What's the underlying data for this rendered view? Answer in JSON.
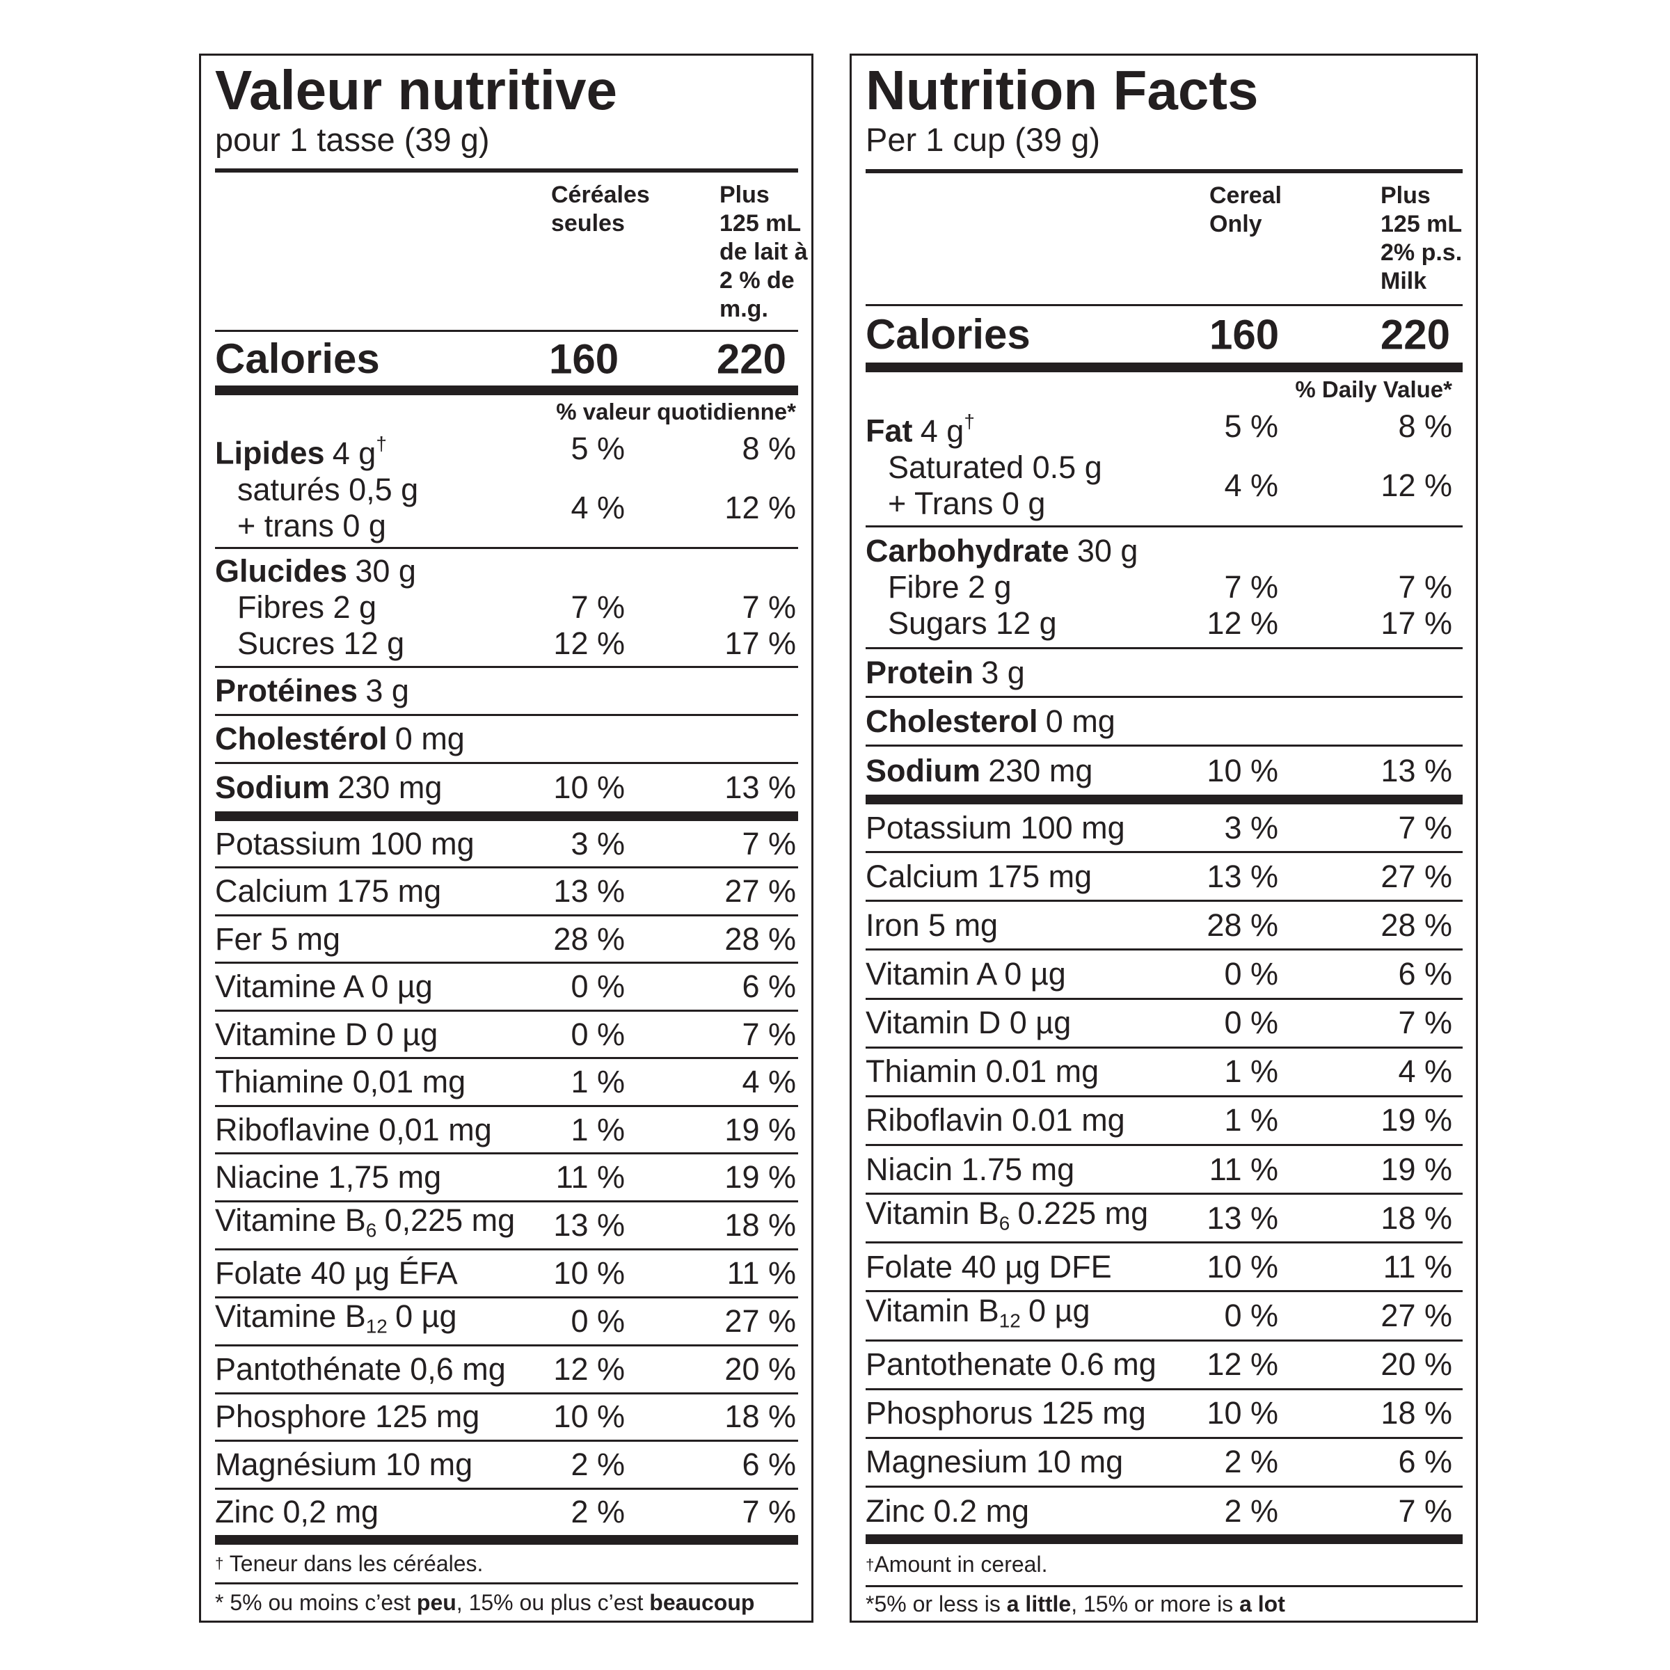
{
  "panels": [
    {
      "title": "Valeur nutritive",
      "serving": "pour 1 tasse (39 g)",
      "col_headers": [
        [
          "Céréales",
          "seules"
        ],
        [
          "Plus",
          "125 mL",
          "de lait à",
          "2 % de",
          "m.g."
        ]
      ],
      "calories": {
        "label": "Calories",
        "values": [
          "160",
          "220"
        ]
      },
      "dv_header": "% valeur quotidienne*",
      "macros": [
        {
          "items": [
            {
              "bold": "Lipides",
              "amount": "4 g",
              "sup": "†",
              "dv": [
                "5 %",
                "8 %"
              ]
            },
            {
              "lines": [
                "saturés 0,5 g",
                "+ trans 0 g"
              ],
              "dv": [
                "4 %",
                "12 %"
              ]
            }
          ]
        },
        {
          "items": [
            {
              "bold": "Glucides",
              "amount": "30 g"
            },
            {
              "text": "Fibres 2 g",
              "dv": [
                "7 %",
                "7 %"
              ]
            },
            {
              "text": "Sucres 12 g",
              "dv": [
                "12 %",
                "17 %"
              ]
            }
          ]
        },
        {
          "items": [
            {
              "bold": "Protéines",
              "amount": "3 g"
            }
          ]
        },
        {
          "items": [
            {
              "bold": "Cholestérol",
              "amount": "0 mg"
            }
          ]
        },
        {
          "items": [
            {
              "bold": "Sodium",
              "amount": "230 mg",
              "dv": [
                "10 %",
                "13 %"
              ]
            }
          ]
        }
      ],
      "micros": [
        {
          "text": "Potassium 100 mg",
          "dv": [
            "3 %",
            "7 %"
          ]
        },
        {
          "text": "Calcium 175 mg",
          "dv": [
            "13 %",
            "27 %"
          ]
        },
        {
          "text": "Fer 5 mg",
          "dv": [
            "28 %",
            "28 %"
          ]
        },
        {
          "text": "Vitamine A 0 µg",
          "dv": [
            "0 %",
            "6 %"
          ]
        },
        {
          "text": "Vitamine D 0 µg",
          "dv": [
            "0 %",
            "7 %"
          ]
        },
        {
          "text": "Thiamine 0,01 mg",
          "dv": [
            "1 %",
            "4 %"
          ]
        },
        {
          "text": "Riboflavine 0,01 mg",
          "dv": [
            "1 %",
            "19 %"
          ]
        },
        {
          "text": "Niacine 1,75 mg",
          "dv": [
            "11 %",
            "19 %"
          ]
        },
        {
          "text": "Vitamine B",
          "sub": "6",
          "amount": "0,225 mg",
          "dv": [
            "13 %",
            "18 %"
          ]
        },
        {
          "text": "Folate 40 µg ÉFA",
          "dv": [
            "10 %",
            "11 %"
          ]
        },
        {
          "text": "Vitamine B",
          "sub": "12",
          "amount": "0 µg",
          "dv": [
            "0 %",
            "27 %"
          ]
        },
        {
          "text": "Pantothénate 0,6 mg",
          "dv": [
            "12 %",
            "20 %"
          ]
        },
        {
          "text": "Phosphore 125 mg",
          "dv": [
            "10 %",
            "18 %"
          ]
        },
        {
          "text": "Magnésium 10 mg",
          "dv": [
            "2 %",
            "6 %"
          ]
        },
        {
          "text": "Zinc 0,2 mg",
          "dv": [
            "2 %",
            "7 %"
          ]
        }
      ],
      "footnotes": [
        [
          {
            "sup": "†"
          },
          {
            "text": " Teneur dans les céréales."
          }
        ],
        [
          {
            "text": "* 5% ou moins c’est "
          },
          {
            "bold": "peu"
          },
          {
            "text": ", 15% ou plus c’est "
          },
          {
            "bold": "beaucoup"
          }
        ]
      ]
    },
    {
      "title": "Nutrition Facts",
      "serving": "Per 1 cup (39 g)",
      "col_headers": [
        [
          "Cereal",
          "Only"
        ],
        [
          "Plus",
          "125 mL",
          "2% p.s.",
          "Milk"
        ]
      ],
      "calories": {
        "label": "Calories",
        "values": [
          "160",
          "220"
        ]
      },
      "dv_header": "% Daily Value*",
      "macros": [
        {
          "items": [
            {
              "bold": "Fat",
              "amount": "4 g",
              "sup": "†",
              "dv": [
                "5 %",
                "8 %"
              ]
            },
            {
              "lines": [
                "Saturated 0.5 g",
                "+ Trans 0 g"
              ],
              "dv": [
                "4 %",
                "12 %"
              ]
            }
          ]
        },
        {
          "items": [
            {
              "bold": "Carbohydrate",
              "amount": "30 g"
            },
            {
              "text": "Fibre 2 g",
              "dv": [
                "7 %",
                "7 %"
              ]
            },
            {
              "text": "Sugars 12 g",
              "dv": [
                "12 %",
                "17 %"
              ]
            }
          ]
        },
        {
          "items": [
            {
              "bold": "Protein",
              "amount": "3 g"
            }
          ]
        },
        {
          "items": [
            {
              "bold": "Cholesterol",
              "amount": "0 mg"
            }
          ]
        },
        {
          "items": [
            {
              "bold": "Sodium",
              "amount": "230 mg",
              "dv": [
                "10 %",
                "13 %"
              ]
            }
          ]
        }
      ],
      "micros": [
        {
          "text": "Potassium 100 mg",
          "dv": [
            "3 %",
            "7 %"
          ]
        },
        {
          "text": "Calcium 175 mg",
          "dv": [
            "13 %",
            "27 %"
          ]
        },
        {
          "text": "Iron 5 mg",
          "dv": [
            "28 %",
            "28 %"
          ]
        },
        {
          "text": "Vitamin A 0 µg",
          "dv": [
            "0 %",
            "6 %"
          ]
        },
        {
          "text": "Vitamin D 0 µg",
          "dv": [
            "0 %",
            "7 %"
          ]
        },
        {
          "text": "Thiamin 0.01 mg",
          "dv": [
            "1 %",
            "4 %"
          ]
        },
        {
          "text": "Riboflavin 0.01 mg",
          "dv": [
            "1 %",
            "19 %"
          ]
        },
        {
          "text": "Niacin 1.75 mg",
          "dv": [
            "11 %",
            "19 %"
          ]
        },
        {
          "text": "Vitamin B",
          "sub": "6",
          "amount": "0.225 mg",
          "dv": [
            "13 %",
            "18 %"
          ]
        },
        {
          "text": "Folate 40 µg DFE",
          "dv": [
            "10 %",
            "11 %"
          ]
        },
        {
          "text": "Vitamin B",
          "sub": "12",
          "amount": "0 µg",
          "dv": [
            "0 %",
            "27 %"
          ]
        },
        {
          "text": "Pantothenate 0.6 mg",
          "dv": [
            "12 %",
            "20 %"
          ]
        },
        {
          "text": "Phosphorus 125 mg",
          "dv": [
            "10 %",
            "18 %"
          ]
        },
        {
          "text": "Magnesium 10 mg",
          "dv": [
            "2 %",
            "6 %"
          ]
        },
        {
          "text": "Zinc 0.2 mg",
          "dv": [
            "2 %",
            "7 %"
          ]
        }
      ],
      "footnotes": [
        [
          {
            "sup": "†"
          },
          {
            "text": "Amount in cereal."
          }
        ],
        [
          {
            "text": "*5% or less is "
          },
          {
            "bold": "a little"
          },
          {
            "text": ", 15% or more is "
          },
          {
            "bold": "a lot"
          }
        ]
      ]
    }
  ]
}
